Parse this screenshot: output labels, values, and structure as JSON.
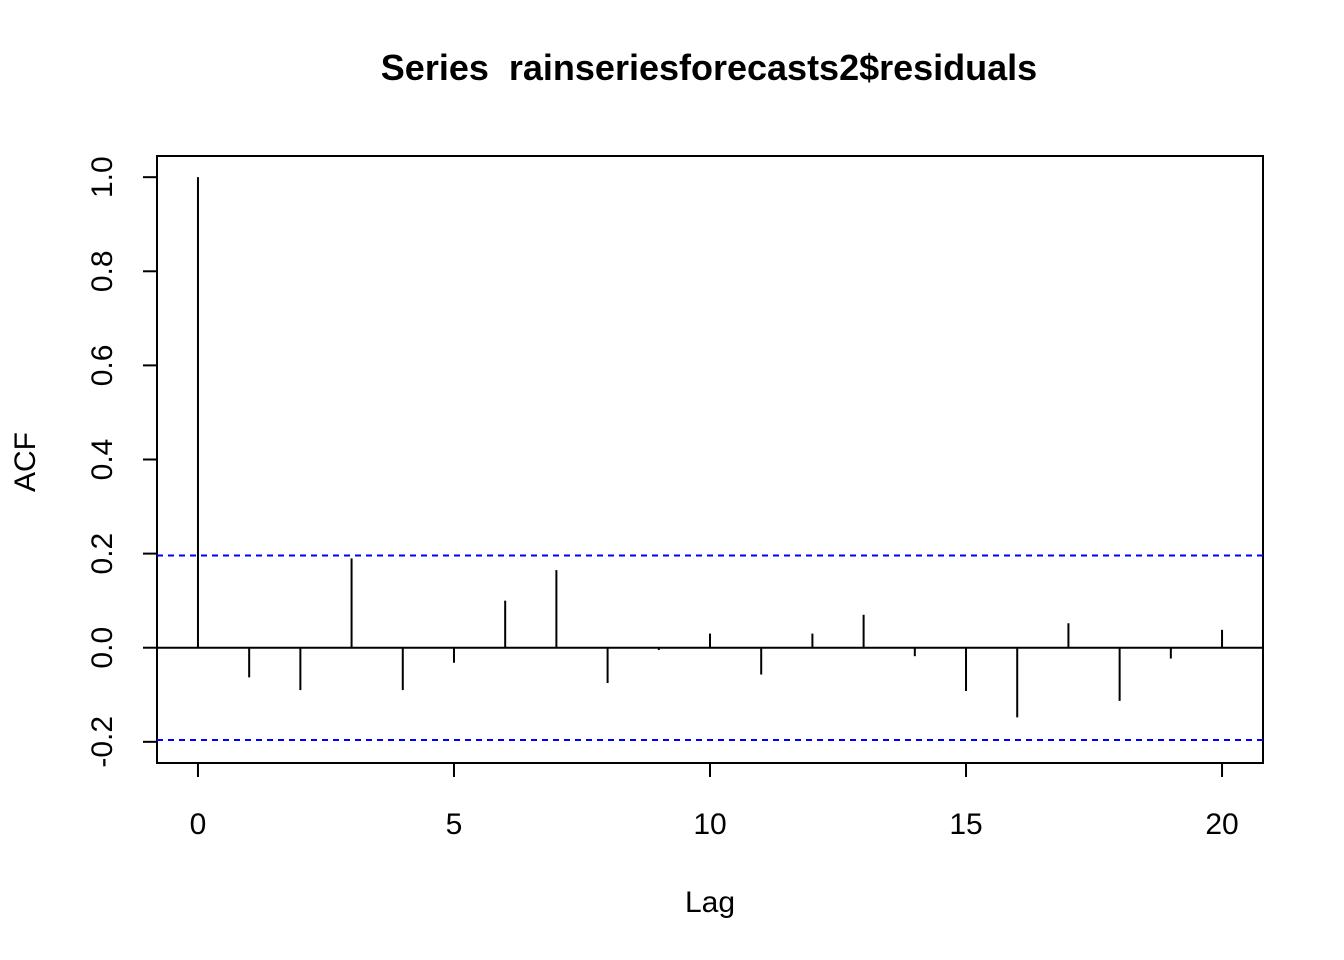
{
  "chart_data": {
    "type": "bar",
    "title": "Series  rainseriesforecasts2$residuals",
    "xlabel": "Lag",
    "ylabel": "ACF",
    "xlim": [
      -0.8,
      20.8
    ],
    "ylim": [
      -0.245,
      1.045
    ],
    "x_ticks": [
      0,
      5,
      10,
      15,
      20
    ],
    "y_ticks": [
      -0.2,
      0.0,
      0.2,
      0.4,
      0.6,
      0.8,
      1.0
    ],
    "x_tick_labels": [
      "0",
      "5",
      "10",
      "15",
      "20"
    ],
    "y_tick_labels": [
      "-0.2",
      "0.0",
      "0.2",
      "0.4",
      "0.6",
      "0.8",
      "1.0"
    ],
    "lags": [
      0,
      1,
      2,
      3,
      4,
      5,
      6,
      7,
      8,
      9,
      10,
      11,
      12,
      13,
      14,
      15,
      16,
      17,
      18,
      19,
      20
    ],
    "values": [
      1.0,
      -0.063,
      -0.09,
      0.19,
      -0.09,
      -0.032,
      0.1,
      0.165,
      -0.075,
      -0.005,
      0.03,
      -0.057,
      0.03,
      0.07,
      -0.018,
      -0.092,
      -0.148,
      0.052,
      -0.113,
      -0.023,
      0.038
    ],
    "confidence_bounds": [
      0.196,
      -0.196
    ],
    "zero_line": 0,
    "bar_color": "#000000",
    "ci_color": "#0000ff",
    "grid": false,
    "legend": "none"
  }
}
